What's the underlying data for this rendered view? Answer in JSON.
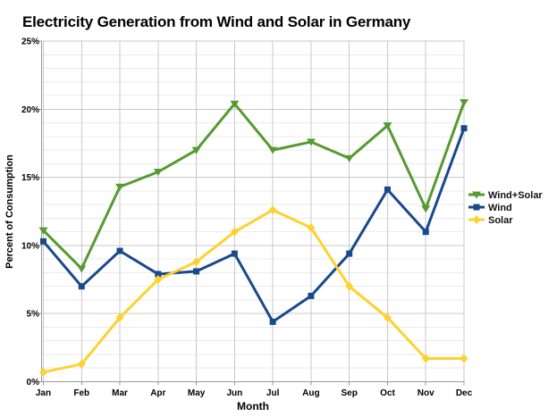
{
  "title": "Electricity Generation from Wind and Solar in Germany",
  "chart_data": {
    "type": "line",
    "title": "Electricity Generation from Wind and Solar in Germany",
    "xlabel": "Month",
    "ylabel": "Percent of Consumption",
    "categories": [
      "Jan",
      "Feb",
      "Mar",
      "Apr",
      "May",
      "Jun",
      "Jul",
      "Aug",
      "Sep",
      "Oct",
      "Nov",
      "Dec"
    ],
    "ylim": [
      0,
      25
    ],
    "y_major_step": 5,
    "y_minor_step": 1,
    "y_tick_labels": [
      "0%",
      "5%",
      "10%",
      "15%",
      "20%",
      "25%"
    ],
    "grid": true,
    "legend_position": "right",
    "series": [
      {
        "name": "Wind+Solar",
        "marker": "triangle-down",
        "color": "#569A31",
        "values": [
          11.1,
          8.3,
          14.3,
          15.4,
          17.0,
          20.4,
          17.0,
          17.6,
          16.4,
          18.8,
          12.7,
          20.5
        ]
      },
      {
        "name": "Wind",
        "marker": "square",
        "color": "#17498C",
        "values": [
          10.3,
          7.0,
          9.6,
          7.9,
          8.1,
          9.4,
          4.4,
          6.3,
          9.4,
          14.1,
          11.0,
          18.6
        ]
      },
      {
        "name": "Solar",
        "marker": "diamond",
        "color": "#FDD230",
        "values": [
          0.7,
          1.3,
          4.7,
          7.5,
          8.8,
          11.0,
          12.6,
          11.3,
          7.0,
          4.7,
          1.7,
          1.7
        ]
      }
    ]
  },
  "colors": {
    "background": "#FFFFFF",
    "grid_minor": "#EBEBEB",
    "grid_major": "#C8C8C8",
    "axis": "#999999",
    "text": "#000000"
  }
}
